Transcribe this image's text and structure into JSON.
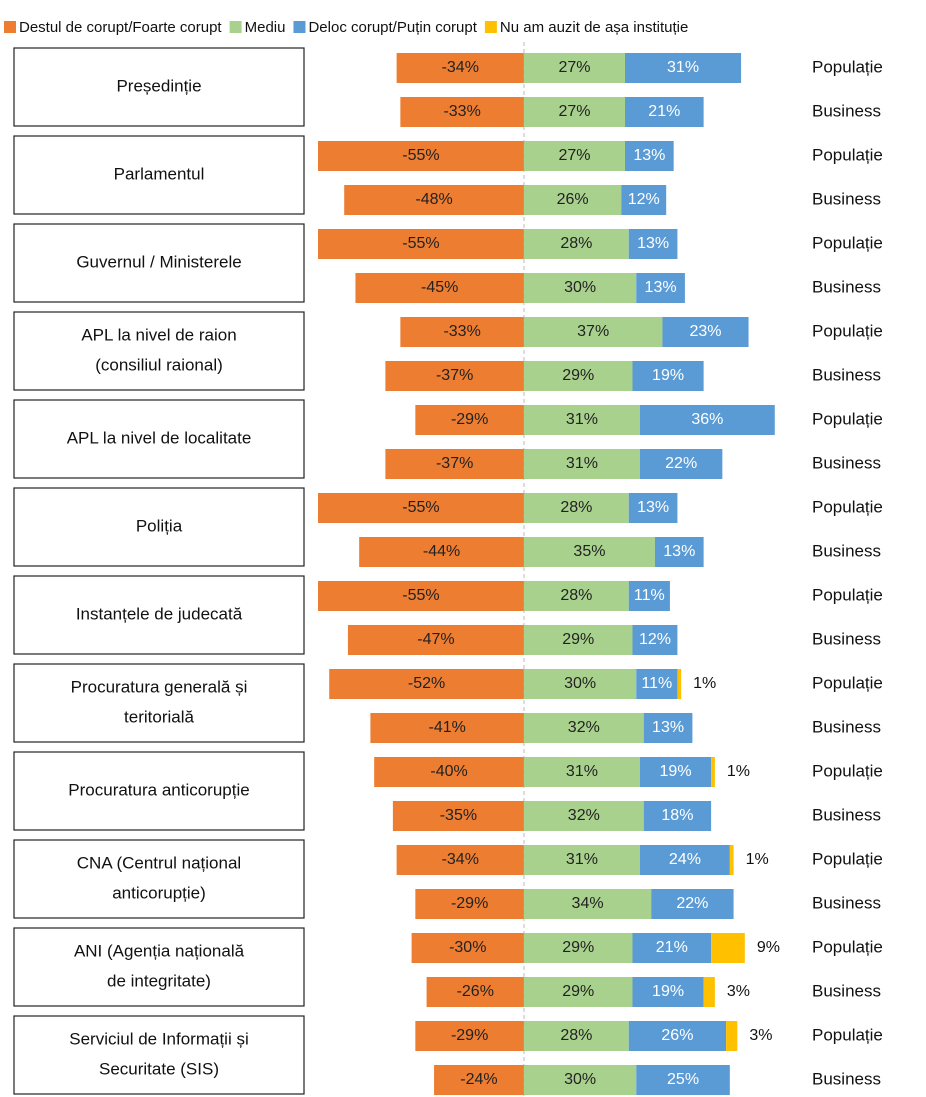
{
  "chart_data": {
    "type": "diverging-bar",
    "groups": [
      [
        "Președinție"
      ],
      [
        "Parlamentul"
      ],
      [
        "Guvernul / Ministerele"
      ],
      [
        "APL la nivel de raion",
        "(consiliul raional)"
      ],
      [
        "APL la nivel de localitate"
      ],
      [
        "Poliția"
      ],
      [
        "Instanțele de judecată"
      ],
      [
        "Procuratura generală și",
        "teritorială"
      ],
      [
        "Procuratura anticorupție"
      ],
      [
        "CNA (Centrul național",
        "anticorupție)"
      ],
      [
        "ANI (Agenția națională",
        "de integritate)"
      ],
      [
        "Serviciul de Informații și",
        "Securitate (SIS)"
      ]
    ],
    "categories": [
      "Populație",
      "Business",
      "Populație",
      "Business",
      "Populație",
      "Business",
      "Populație",
      "Business",
      "Populație",
      "Business",
      "Populație",
      "Business",
      "Populație",
      "Business",
      "Populație",
      "Business",
      "Populație",
      "Business",
      "Populație",
      "Business",
      "Populație",
      "Business",
      "Populație",
      "Business"
    ],
    "xlim": [
      -55,
      70
    ],
    "series": [
      {
        "name": "Destul de corupt/Foarte corupt",
        "color": "#ed7d31",
        "label_color": "#222222",
        "values": [
          -34,
          -33,
          -55,
          -48,
          -55,
          -45,
          -33,
          -37,
          -29,
          -37,
          -55,
          -44,
          -55,
          -47,
          -52,
          -41,
          -40,
          -35,
          -34,
          -29,
          -30,
          -26,
          -29,
          -24
        ],
        "value_labels": [
          "-34%",
          "-33%",
          "-55%",
          "-48%",
          "-55%",
          "-45%",
          "-33%",
          "-37%",
          "-29%",
          "-37%",
          "-55%",
          "-44%",
          "-55%",
          "-47%",
          "-52%",
          "-41%",
          "-40%",
          "-35%",
          "-34%",
          "-29%",
          "-30%",
          "-26%",
          "-29%",
          "-24%"
        ]
      },
      {
        "name": "Mediu",
        "color": "#a9d18e",
        "label_color": "#222222",
        "values": [
          27,
          27,
          27,
          26,
          28,
          30,
          37,
          29,
          31,
          31,
          28,
          35,
          28,
          29,
          30,
          32,
          31,
          32,
          31,
          34,
          29,
          29,
          28,
          30
        ],
        "value_labels": [
          "27%",
          "27%",
          "27%",
          "26%",
          "28%",
          "30%",
          "37%",
          "29%",
          "31%",
          "31%",
          "28%",
          "35%",
          "28%",
          "29%",
          "30%",
          "32%",
          "31%",
          "32%",
          "31%",
          "34%",
          "29%",
          "29%",
          "28%",
          "30%"
        ]
      },
      {
        "name": "Deloc corupt/Puțin corupt",
        "color": "#5b9bd5",
        "label_color": "#ffffff",
        "values": [
          31,
          21,
          13,
          12,
          13,
          13,
          23,
          19,
          36,
          22,
          13,
          13,
          11,
          12,
          11,
          13,
          19,
          18,
          24,
          22,
          21,
          19,
          26,
          25
        ],
        "value_labels": [
          "31%",
          "21%",
          "13%",
          "12%",
          "13%",
          "13%",
          "23%",
          "19%",
          "36%",
          "22%",
          "13%",
          "13%",
          "11%",
          "12%",
          "11%",
          "13%",
          "19%",
          "18%",
          "24%",
          "22%",
          "21%",
          "19%",
          "26%",
          "25%"
        ]
      },
      {
        "name": "Nu am auzit de așa instituție",
        "color": "#ffc000",
        "label_color": "#111111",
        "label_outside": true,
        "values": [
          null,
          null,
          null,
          null,
          null,
          null,
          null,
          null,
          null,
          null,
          null,
          null,
          null,
          null,
          1,
          null,
          1,
          null,
          1,
          null,
          9,
          3,
          3,
          null
        ],
        "value_labels": [
          null,
          null,
          null,
          null,
          null,
          null,
          null,
          null,
          null,
          null,
          null,
          null,
          null,
          null,
          "1%",
          null,
          "1%",
          null,
          "1%",
          null,
          "9%",
          "3%",
          "3%",
          null
        ]
      }
    ]
  }
}
